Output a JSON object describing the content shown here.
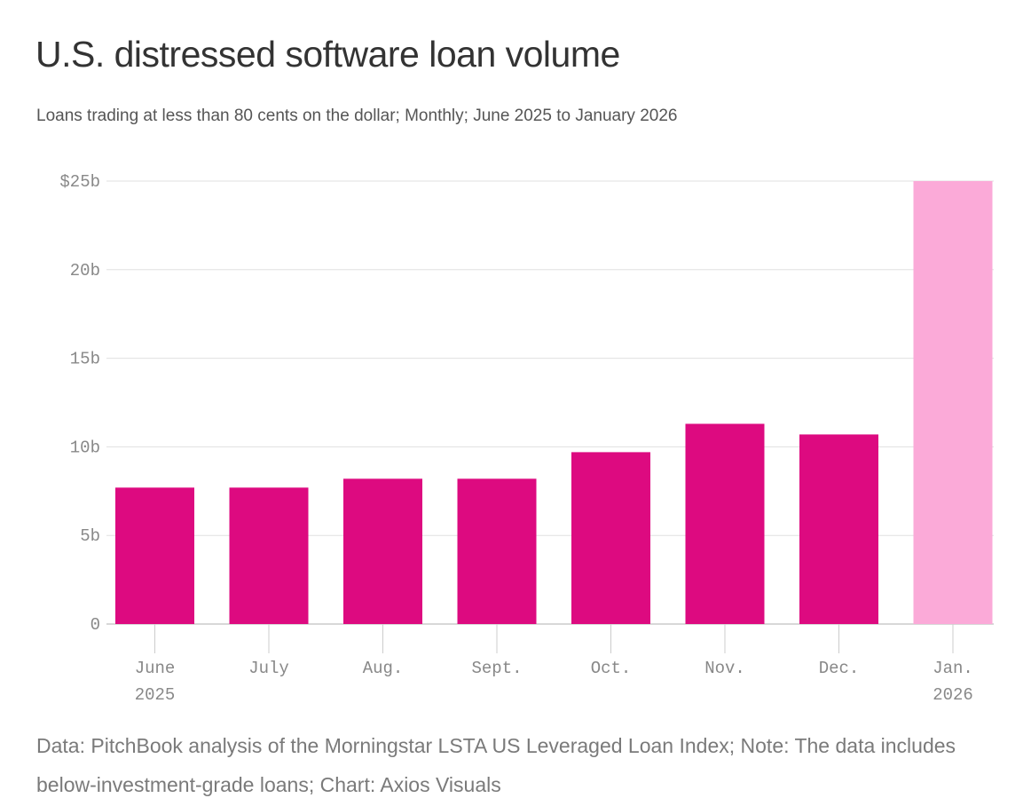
{
  "title": "U.S. distressed software loan volume",
  "subtitle": "Loans trading at less than 80 cents on the dollar; Monthly; June 2025 to January 2026",
  "footer": "Data: PitchBook analysis of the Morningstar LSTA US Leveraged Loan Index; Note: The data includes below-investment-grade loans; Chart: Axios Visuals",
  "colors": {
    "bar": "#dd0a80",
    "highlight_bar": "#fbaad8",
    "grid": "#e0e0e0",
    "axis": "#cccccc"
  },
  "chart_data": {
    "type": "bar",
    "categories": [
      "June 2025",
      "July",
      "Aug.",
      "Sept.",
      "Oct.",
      "Nov.",
      "Dec.",
      "Jan. 2026"
    ],
    "category_labels": [
      [
        "June",
        "2025"
      ],
      [
        "July"
      ],
      [
        "Aug."
      ],
      [
        "Sept."
      ],
      [
        "Oct."
      ],
      [
        "Nov."
      ],
      [
        "Dec."
      ],
      [
        "Jan.",
        "2026"
      ]
    ],
    "values": [
      7.7,
      7.7,
      8.2,
      8.2,
      9.7,
      11.3,
      10.7,
      25.0
    ],
    "highlight_index": 7,
    "unit": "billion USD",
    "ylim": [
      0,
      25
    ],
    "yticks": [
      0,
      5,
      10,
      15,
      20,
      25
    ],
    "ytick_labels": [
      "0",
      "5b",
      "10b",
      "15b",
      "20b",
      "$25b"
    ],
    "grid": true,
    "legend": "none"
  }
}
